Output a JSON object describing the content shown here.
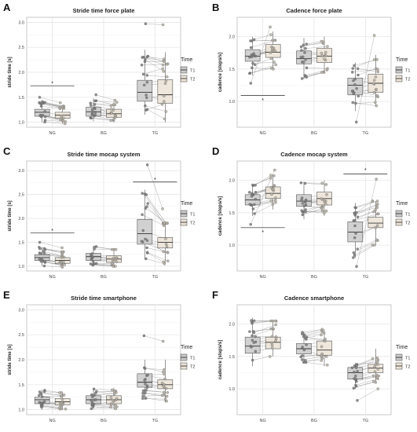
{
  "legend": {
    "title": "Time",
    "entries": [
      "T1",
      "T2"
    ]
  },
  "colors": {
    "t1_fill": "#c9c9c9",
    "t2_fill": "#ece3d6",
    "point_t1": "#7d7d7d",
    "point_t2": "#b8b1a6",
    "line": "#8a8a8a"
  },
  "chart_data": [
    {
      "letter": "A",
      "title": "Stride time force plate",
      "type": "box",
      "ylabel": "stride time [s]",
      "ylim": [
        0.9,
        3.1
      ],
      "yticks": [
        1.0,
        1.5,
        2.0,
        2.5,
        3.0
      ],
      "categories": [
        "NG",
        "BG",
        "TG"
      ],
      "stats": [
        {
          "t1": [
            1.0,
            1.12,
            1.2,
            1.26,
            1.42
          ],
          "t2": [
            0.97,
            1.08,
            1.14,
            1.2,
            1.32
          ]
        },
        {
          "t1": [
            1.02,
            1.12,
            1.21,
            1.3,
            1.48
          ],
          "t2": [
            1.0,
            1.1,
            1.17,
            1.26,
            1.4
          ]
        },
        {
          "t1": [
            1.15,
            1.42,
            1.6,
            1.84,
            2.45
          ],
          "t2": [
            1.0,
            1.38,
            1.55,
            1.85,
            2.4
          ]
        }
      ],
      "extremes": [
        {
          "t1": [
            1.5
          ],
          "t2": []
        },
        {
          "t1": [
            1.55
          ],
          "t2": []
        },
        {
          "t1": [
            2.97
          ],
          "t2": [
            2.95
          ]
        }
      ],
      "significance": [
        {
          "x1": 0,
          "x2": 0,
          "y": 1.73,
          "star_y": 1.78,
          "label": "*"
        }
      ]
    },
    {
      "letter": "B",
      "title": "Cadence force plate",
      "type": "box",
      "ylabel": "cadence [steps/s]",
      "ylim": [
        0.6,
        2.3
      ],
      "yticks": [
        1.0,
        1.5,
        2.0
      ],
      "categories": [
        "NG",
        "BG",
        "TG"
      ],
      "stats": [
        {
          "t1": [
            1.4,
            1.62,
            1.7,
            1.8,
            2.0
          ],
          "t2": [
            1.5,
            1.68,
            1.76,
            1.88,
            2.08
          ]
        },
        {
          "t1": [
            1.35,
            1.58,
            1.66,
            1.78,
            1.98
          ],
          "t2": [
            1.45,
            1.6,
            1.7,
            1.82,
            2.0
          ]
        },
        {
          "t1": [
            0.85,
            1.1,
            1.25,
            1.36,
            1.6
          ],
          "t2": [
            0.92,
            1.14,
            1.28,
            1.42,
            1.72
          ]
        }
      ],
      "extremes": [
        {
          "t1": [
            1.28
          ],
          "t2": [
            2.15
          ]
        },
        {
          "t1": [],
          "t2": []
        },
        {
          "t1": [
            0.68
          ],
          "t2": [
            2.02
          ]
        }
      ],
      "significance": [
        {
          "x1": 0,
          "x2": 0,
          "y": 1.09,
          "star_y": 1.02,
          "label": "*"
        }
      ]
    },
    {
      "letter": "C",
      "title": "Stride time mocap system",
      "type": "box",
      "ylabel": "stride time [s]",
      "ylim": [
        0.9,
        3.2
      ],
      "yticks": [
        1.0,
        1.5,
        2.0,
        2.5,
        3.0
      ],
      "categories": [
        "NG",
        "BG",
        "TG"
      ],
      "stats": [
        {
          "t1": [
            1.0,
            1.12,
            1.18,
            1.24,
            1.4
          ],
          "t2": [
            0.98,
            1.06,
            1.12,
            1.18,
            1.3
          ]
        },
        {
          "t1": [
            1.02,
            1.12,
            1.2,
            1.27,
            1.42
          ],
          "t2": [
            1.0,
            1.08,
            1.15,
            1.22,
            1.35
          ]
        },
        {
          "t1": [
            1.15,
            1.46,
            1.68,
            1.98,
            2.6
          ],
          "t2": [
            1.05,
            1.38,
            1.5,
            1.6,
            1.9
          ]
        }
      ],
      "extremes": [
        {
          "t1": [
            1.5
          ],
          "t2": []
        },
        {
          "t1": [],
          "t2": []
        },
        {
          "t1": [
            3.12
          ],
          "t2": [
            2.2
          ]
        }
      ],
      "significance": [
        {
          "x1": 0,
          "x2": 0,
          "y": 1.7,
          "star_y": 1.75,
          "label": "*"
        },
        {
          "x1": 2,
          "x2": 2,
          "y": 2.76,
          "star_y": 2.81,
          "label": "*"
        }
      ]
    },
    {
      "letter": "D",
      "title": "Cadence mocap system",
      "type": "box",
      "ylabel": "cadence [steps/s]",
      "ylim": [
        0.6,
        2.3
      ],
      "yticks": [
        1.0,
        1.5,
        2.0
      ],
      "categories": [
        "NG",
        "BG",
        "TG"
      ],
      "stats": [
        {
          "t1": [
            1.45,
            1.62,
            1.7,
            1.78,
            1.95
          ],
          "t2": [
            1.55,
            1.72,
            1.8,
            1.9,
            2.08
          ]
        },
        {
          "t1": [
            1.4,
            1.6,
            1.68,
            1.78,
            1.98
          ],
          "t2": [
            1.45,
            1.62,
            1.72,
            1.82,
            2.0
          ]
        },
        {
          "t1": [
            0.8,
            1.05,
            1.2,
            1.36,
            1.65
          ],
          "t2": [
            1.0,
            1.27,
            1.34,
            1.43,
            1.68
          ]
        }
      ],
      "extremes": [
        {
          "t1": [
            1.32
          ],
          "t2": [
            2.16
          ]
        },
        {
          "t1": [],
          "t2": []
        },
        {
          "t1": [
            0.67
          ],
          "t2": [
            2.02
          ]
        }
      ],
      "significance": [
        {
          "x1": 0,
          "x2": 0,
          "y": 1.27,
          "star_y": 1.2,
          "label": "*"
        },
        {
          "x1": 2,
          "x2": 2,
          "y": 2.1,
          "star_y": 2.16,
          "label": "*"
        }
      ]
    },
    {
      "letter": "E",
      "title": "Stride time smartphone",
      "type": "box",
      "ylabel": "stride time [s]",
      "ylim": [
        0.9,
        3.1
      ],
      "yticks": [
        1.0,
        1.5,
        2.0,
        2.5,
        3.0
      ],
      "categories": [
        "NG",
        "BG",
        "TG"
      ],
      "stats": [
        {
          "t1": [
            1.0,
            1.12,
            1.2,
            1.25,
            1.4
          ],
          "t2": [
            1.0,
            1.1,
            1.16,
            1.22,
            1.34
          ]
        },
        {
          "t1": [
            1.02,
            1.12,
            1.2,
            1.28,
            1.42
          ],
          "t2": [
            1.02,
            1.12,
            1.2,
            1.28,
            1.44
          ]
        },
        {
          "t1": [
            1.2,
            1.45,
            1.55,
            1.72,
            2.0
          ],
          "t2": [
            1.15,
            1.42,
            1.5,
            1.6,
            2.0
          ]
        }
      ],
      "extremes": [
        {
          "t1": [],
          "t2": []
        },
        {
          "t1": [],
          "t2": []
        },
        {
          "t1": [
            2.48
          ],
          "t2": []
        }
      ],
      "significance": []
    },
    {
      "letter": "F",
      "title": "Cadence smartphone",
      "type": "box",
      "ylabel": "cadence [steps/s]",
      "ylim": [
        0.6,
        2.3
      ],
      "yticks": [
        1.0,
        1.5,
        2.0
      ],
      "categories": [
        "NG",
        "BG",
        "TG"
      ],
      "stats": [
        {
          "t1": [
            1.35,
            1.55,
            1.66,
            1.8,
            2.1
          ],
          "t2": [
            1.5,
            1.62,
            1.72,
            1.8,
            2.05
          ]
        },
        {
          "t1": [
            1.4,
            1.54,
            1.62,
            1.7,
            1.88
          ],
          "t2": [
            1.35,
            1.52,
            1.6,
            1.74,
            1.92
          ]
        },
        {
          "t1": [
            1.0,
            1.15,
            1.25,
            1.33,
            1.4
          ],
          "t2": [
            1.1,
            1.25,
            1.32,
            1.38,
            1.62
          ]
        }
      ],
      "extremes": [
        {
          "t1": [],
          "t2": []
        },
        {
          "t1": [],
          "t2": []
        },
        {
          "t1": [
            0.82
          ],
          "t2": [
            1.0
          ]
        }
      ],
      "significance": []
    }
  ]
}
